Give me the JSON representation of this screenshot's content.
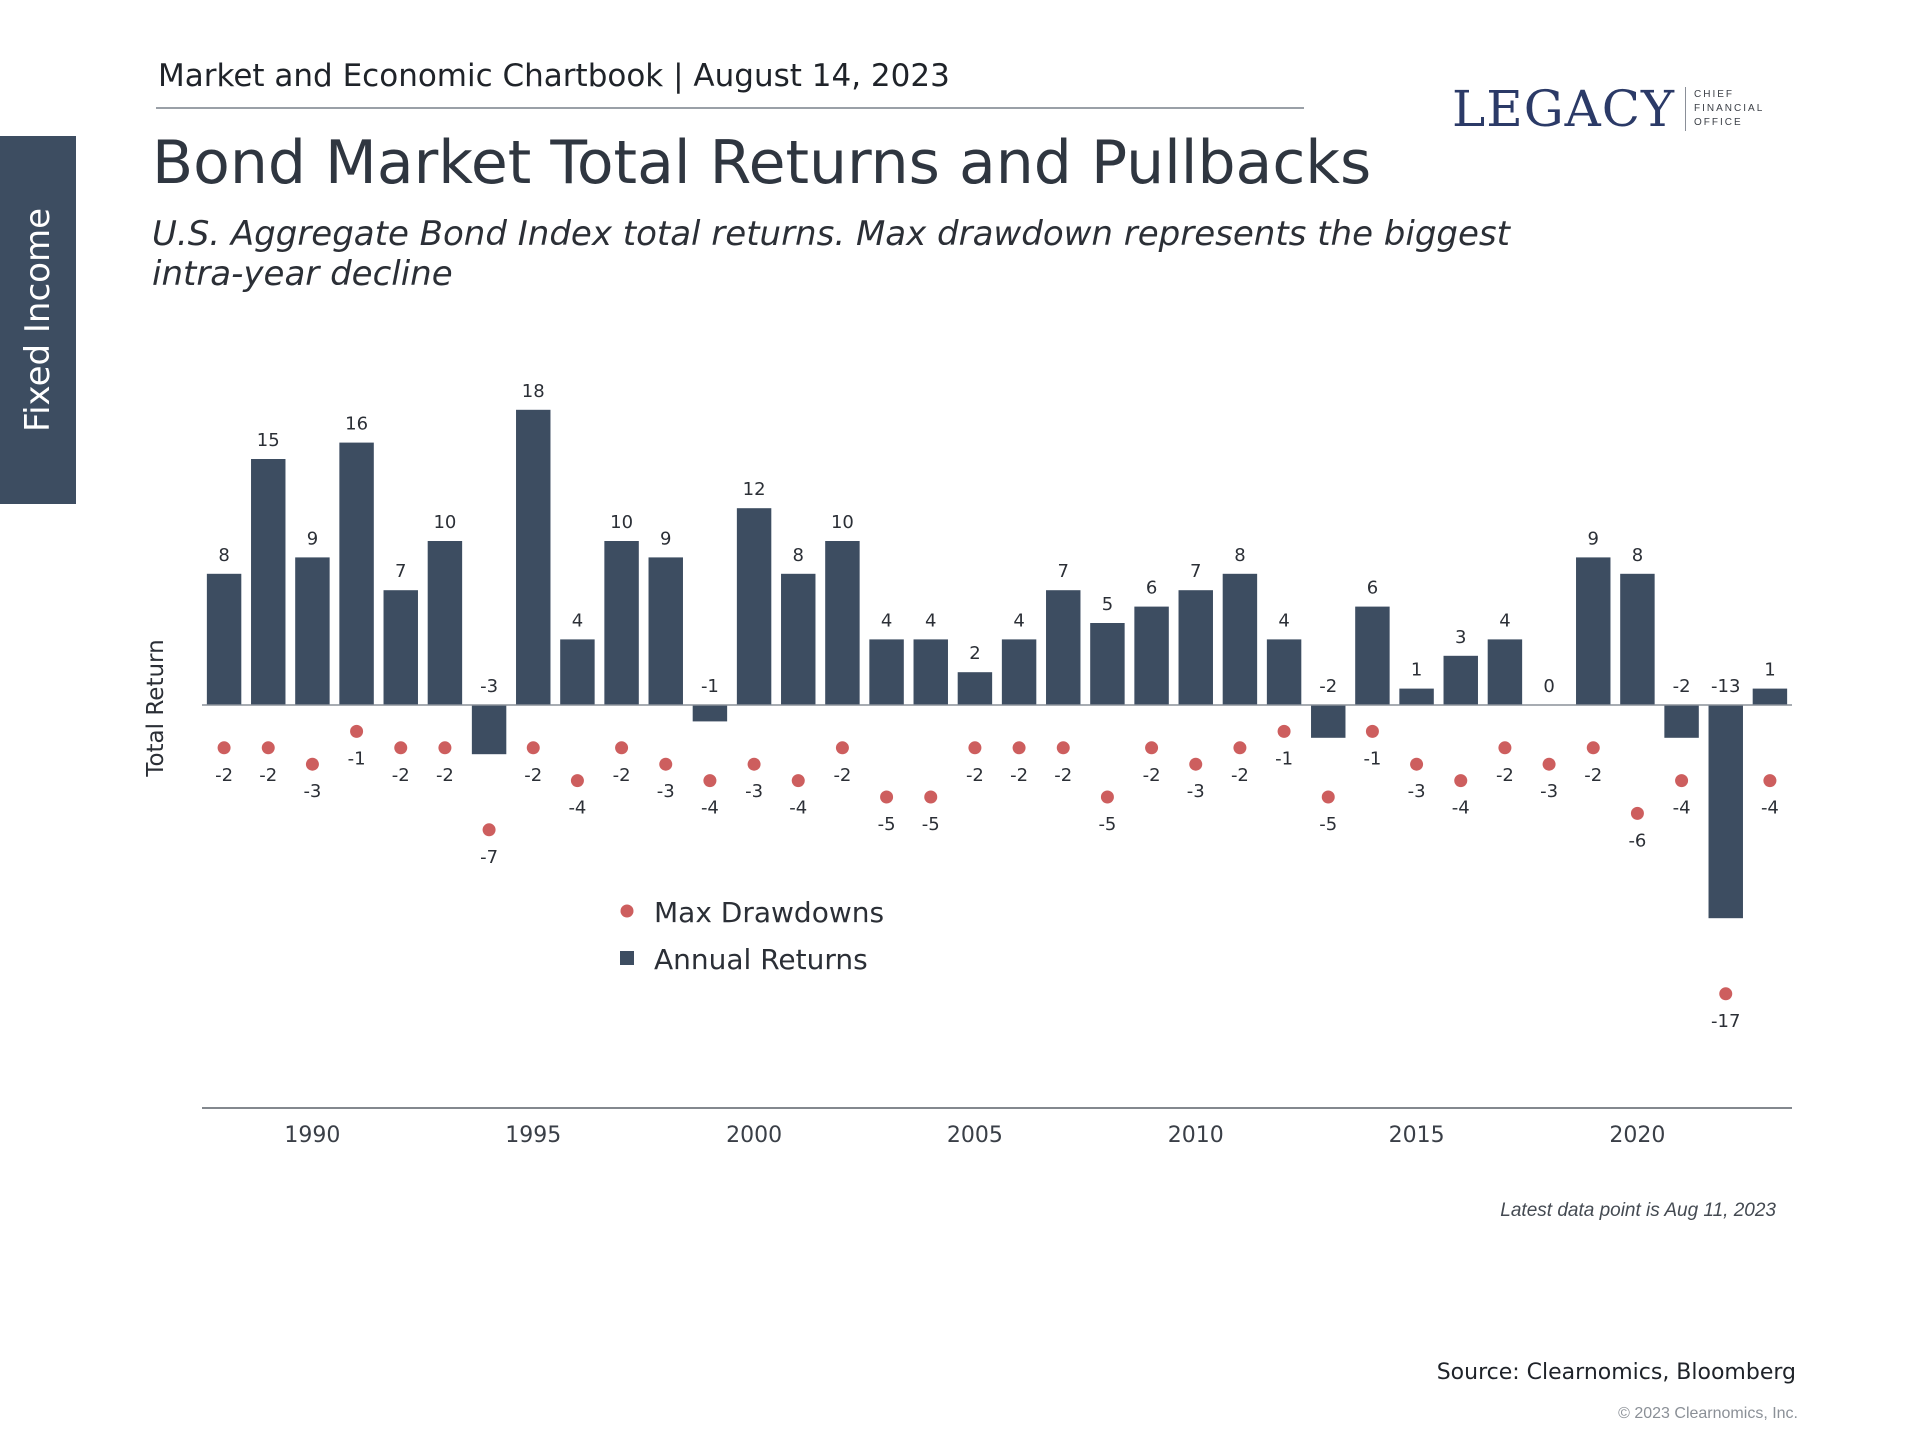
{
  "side_tab": {
    "label": "Fixed Income"
  },
  "header": {
    "text": "Market and Economic Chartbook | August 14, 2023"
  },
  "logo": {
    "word": "LEGACY",
    "lines": [
      "CHIEF",
      "FINANCIAL",
      "OFFICE"
    ]
  },
  "title": "Bond Market Total Returns and Pullbacks",
  "subtitle": {
    "line1": "U.S. Aggregate Bond Index total returns. Max drawdown represents the biggest",
    "line2": "intra-year decline"
  },
  "note": "Latest data point is Aug 11, 2023",
  "source": "Source: Clearnomics, Bloomberg",
  "copyright": "© 2023 Clearnomics, Inc.",
  "colors": {
    "bar": "#3d4d61",
    "dot": "#cd5e5e",
    "sidebar": "#3d4d61"
  },
  "chart_data": {
    "type": "bar",
    "ylabel": "Total Return",
    "ylim": [
      -20,
      20
    ],
    "x": [
      1988,
      1989,
      1990,
      1991,
      1992,
      1993,
      1994,
      1995,
      1996,
      1997,
      1998,
      1999,
      2000,
      2001,
      2002,
      2003,
      2004,
      2005,
      2006,
      2007,
      2008,
      2009,
      2010,
      2011,
      2012,
      2013,
      2014,
      2015,
      2016,
      2017,
      2018,
      2019,
      2020,
      2021,
      2022,
      2023
    ],
    "x_ticks": [
      1990,
      1995,
      2000,
      2005,
      2010,
      2015,
      2020
    ],
    "series": [
      {
        "name": "Annual Returns",
        "mark": "bar",
        "values": [
          8,
          15,
          9,
          16,
          7,
          10,
          -3,
          18,
          4,
          10,
          9,
          -1,
          12,
          8,
          10,
          4,
          4,
          2,
          4,
          7,
          5,
          6,
          7,
          8,
          4,
          -2,
          6,
          1,
          3,
          4,
          0,
          9,
          8,
          -2,
          -13,
          1
        ]
      },
      {
        "name": "Max Drawdowns",
        "mark": "dot",
        "values": [
          -2,
          -2,
          -3,
          -1,
          -2,
          -2,
          -7,
          -2,
          -4,
          -2,
          -3,
          -4,
          -3,
          -4,
          -2,
          -5,
          -5,
          -2,
          -2,
          -2,
          -5,
          -2,
          -3,
          -2,
          -1,
          -5,
          -1,
          -3,
          -4,
          -2,
          -3,
          -2,
          -6,
          -4,
          -17,
          -4
        ]
      }
    ],
    "legend": {
      "position": "bottom-left",
      "order": [
        "Max Drawdowns",
        "Annual Returns"
      ]
    }
  }
}
